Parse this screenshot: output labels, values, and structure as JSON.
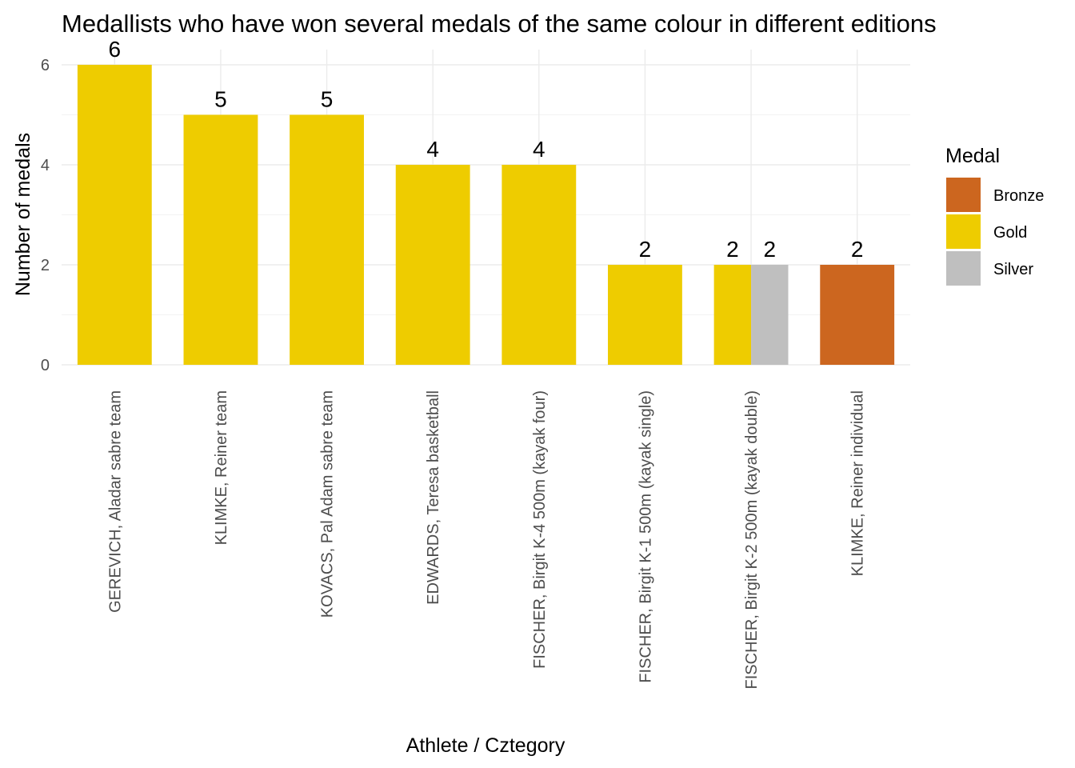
{
  "chart_data": {
    "type": "bar",
    "title": "Medallists who have won several medals of the same colour in different editions",
    "xlabel": "Athlete / Cztegory",
    "ylabel": "Number of medals",
    "ylim": [
      0,
      6
    ],
    "y_ticks": [
      0,
      2,
      4,
      6
    ],
    "grid": true,
    "categories": [
      "GEREVICH, Aladar sabre team",
      "KLIMKE, Reiner team",
      "KOVACS, Pal Adam sabre team",
      "EDWARDS, Teresa basketball",
      "FISCHER, Birgit K-4 500m (kayak four)",
      "FISCHER, Birgit K-1 500m (kayak single)",
      "FISCHER, Birgit K-2 500m (kayak double)",
      "KLIMKE, Reiner individual"
    ],
    "series": [
      {
        "name": "Bronze",
        "color": "#CC661F",
        "values": [
          null,
          null,
          null,
          null,
          null,
          null,
          null,
          2
        ]
      },
      {
        "name": "Gold",
        "color": "#EECC00",
        "values": [
          6,
          5,
          5,
          4,
          4,
          2,
          2,
          null
        ]
      },
      {
        "name": "Silver",
        "color": "#BFBFBF",
        "values": [
          null,
          null,
          null,
          null,
          null,
          null,
          2,
          null
        ]
      }
    ],
    "legend": {
      "title": "Medal",
      "position": "right"
    }
  }
}
